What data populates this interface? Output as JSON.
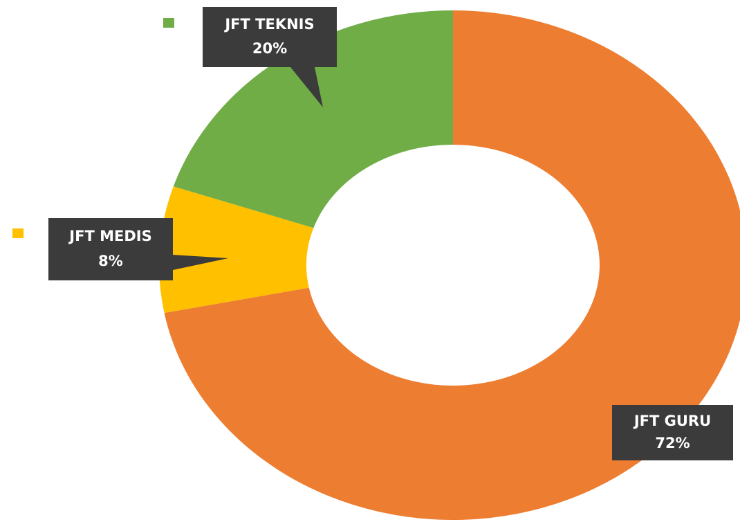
{
  "chart_data": {
    "type": "donut",
    "categories": [
      "JFT GURU",
      "JFT MEDIS",
      "JFT TEKNIS"
    ],
    "values": [
      72,
      8,
      20
    ],
    "value_labels": [
      "72%",
      "8%",
      "20%"
    ],
    "colors": [
      "#ed7d31",
      "#ffc000",
      "#70ad47"
    ]
  }
}
